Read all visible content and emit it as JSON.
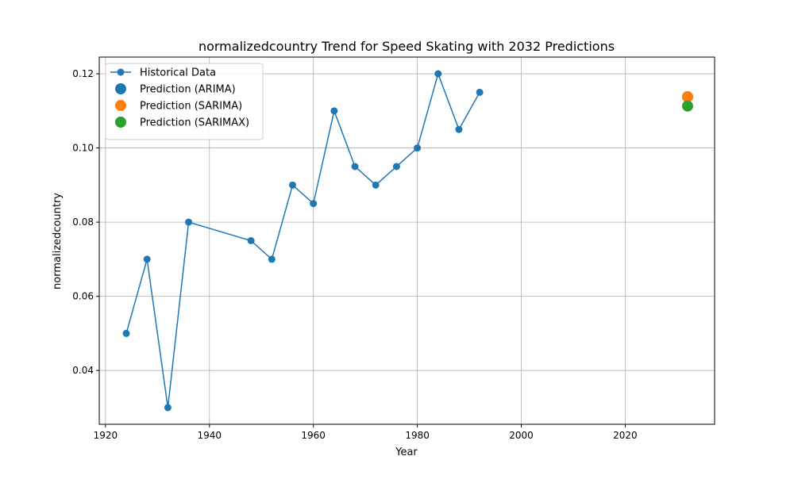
{
  "chart_data": {
    "type": "line",
    "title": "normalizedcountry Trend for Speed Skating with 2032 Predictions",
    "xlabel": "Year",
    "ylabel": "normalizedcountry",
    "xlim": [
      1918.8,
      2037.2
    ],
    "ylim": [
      0.0255,
      0.1245
    ],
    "x_ticks": [
      1920,
      1940,
      1960,
      1980,
      2000,
      2020
    ],
    "y_ticks": [
      0.04,
      0.06,
      0.08,
      0.1,
      0.12
    ],
    "x_tick_labels": [
      "1920",
      "1940",
      "1960",
      "1980",
      "2000",
      "2020"
    ],
    "y_tick_labels": [
      "0.04",
      "0.06",
      "0.08",
      "0.10",
      "0.12"
    ],
    "grid": true,
    "legend_position": "top-left",
    "series": [
      {
        "name": "Historical Data",
        "kind": "line-marker",
        "color": "#1f77b4",
        "x": [
          1924,
          1928,
          1932,
          1936,
          1948,
          1952,
          1956,
          1960,
          1964,
          1968,
          1972,
          1976,
          1980,
          1984,
          1988,
          1992
        ],
        "y": [
          0.05,
          0.07,
          0.03,
          0.08,
          0.075,
          0.07,
          0.09,
          0.085,
          0.11,
          0.095,
          0.09,
          0.095,
          0.1,
          0.12,
          0.105,
          0.115
        ]
      },
      {
        "name": "Prediction (ARIMA)",
        "kind": "scatter",
        "color": "#1f77b4",
        "x": [
          2032
        ],
        "y": [
          0.1138
        ]
      },
      {
        "name": "Prediction (SARIMA)",
        "kind": "scatter",
        "color": "#ff7f0e",
        "x": [
          2032
        ],
        "y": [
          0.1138
        ]
      },
      {
        "name": "Prediction (SARIMAX)",
        "kind": "scatter",
        "color": "#2ca02c",
        "x": [
          2032
        ],
        "y": [
          0.1113
        ]
      }
    ]
  }
}
